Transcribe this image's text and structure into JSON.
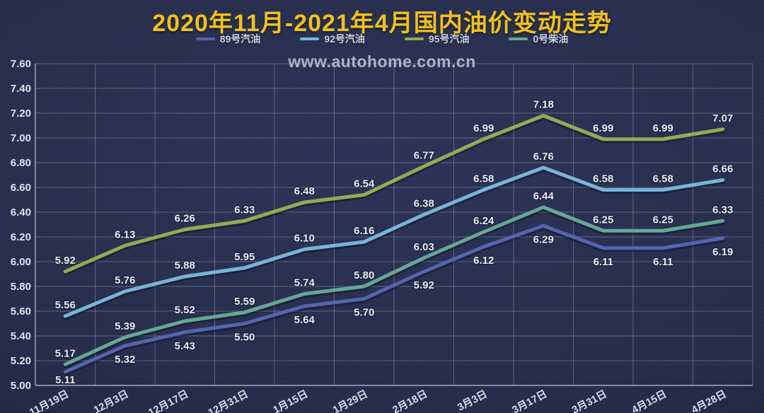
{
  "page": {
    "title": "2020年11月-2021年4月国内油价变动走势",
    "watermark": "www.autohome.com.cn"
  },
  "chart_data": {
    "type": "line",
    "title": "2020年11月-2021年4月国内油价变动走势",
    "categories": [
      "11月19日",
      "12月3日",
      "12月17日",
      "12月31日",
      "1月15日",
      "1月29日",
      "2月18日",
      "3月3日",
      "3月17日",
      "3月31日",
      "4月15日",
      "4月28日"
    ],
    "series": [
      {
        "name": "89号汽油",
        "color": "#5565ae",
        "label_side": "below",
        "values": [
          5.11,
          5.32,
          5.43,
          5.5,
          5.64,
          5.7,
          5.92,
          6.12,
          6.29,
          6.11,
          6.11,
          6.19
        ]
      },
      {
        "name": "92号汽油",
        "color": "#79b5d8",
        "label_side": "above",
        "values": [
          5.56,
          5.76,
          5.88,
          5.95,
          6.1,
          6.16,
          6.38,
          6.58,
          6.76,
          6.58,
          6.58,
          6.66
        ]
      },
      {
        "name": "95号汽油",
        "color": "#96ab52",
        "label_side": "above",
        "values": [
          5.92,
          6.13,
          6.26,
          6.33,
          6.48,
          6.54,
          6.77,
          6.99,
          7.18,
          6.99,
          6.99,
          7.07
        ]
      },
      {
        "name": "0号柴油",
        "color": "#67a795",
        "label_side": "above",
        "values": [
          5.17,
          5.39,
          5.52,
          5.59,
          5.74,
          5.8,
          6.03,
          6.24,
          6.44,
          6.25,
          6.25,
          6.33
        ]
      }
    ],
    "ylim": [
      5.0,
      7.6
    ],
    "ytick_step": 0.2,
    "yticks": [
      "5.00",
      "5.20",
      "5.40",
      "5.60",
      "5.80",
      "6.00",
      "6.20",
      "6.40",
      "6.60",
      "6.80",
      "7.00",
      "7.20",
      "7.40",
      "7.60"
    ],
    "grid": true,
    "legend_position": "top-center",
    "xlabel_rotation": -28,
    "value_labels_shown": true
  },
  "colors": {
    "background": "#252b49",
    "title": "#f0c11c",
    "grid": "#b8c0d2",
    "axis_text": "#dfe3ed",
    "value_labels": "#e9ecf2",
    "watermark": "#c5cbd8"
  }
}
